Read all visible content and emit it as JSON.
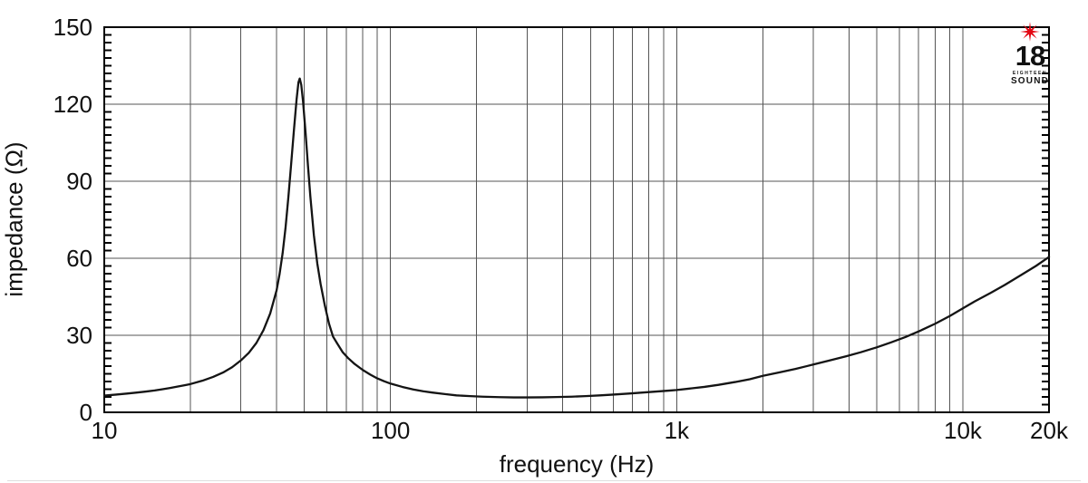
{
  "chart_data": {
    "type": "line",
    "title": "",
    "xlabel": "frequency (Hz)",
    "ylabel": "impedance (Ω)",
    "x_scale": "log",
    "xlim": [
      10,
      20000
    ],
    "ylim": [
      0,
      150
    ],
    "x_ticks": [
      {
        "value": 10,
        "label": "10"
      },
      {
        "value": 100,
        "label": "100"
      },
      {
        "value": 1000,
        "label": "1k"
      },
      {
        "value": 10000,
        "label": "10k"
      },
      {
        "value": 20000,
        "label": "20k"
      }
    ],
    "y_ticks": [
      {
        "value": 0,
        "label": "0"
      },
      {
        "value": 30,
        "label": "30"
      },
      {
        "value": 60,
        "label": "60"
      },
      {
        "value": 90,
        "label": "90"
      },
      {
        "value": 120,
        "label": "120"
      },
      {
        "value": 150,
        "label": "150"
      }
    ],
    "y_minor_step": 3,
    "grid": "log-decades-vertical, major-horizontal",
    "legend": "none",
    "line_color": "#141414",
    "grid_color": "#555555",
    "frame_color": "#000000",
    "resonance_peak": {
      "frequency_hz": 48,
      "impedance_ohm": 130
    },
    "series": [
      {
        "name": "impedance",
        "points": [
          [
            10,
            6.5
          ],
          [
            11,
            6.9
          ],
          [
            12,
            7.3
          ],
          [
            13,
            7.7
          ],
          [
            14,
            8.1
          ],
          [
            15,
            8.5
          ],
          [
            16,
            9.0
          ],
          [
            17,
            9.5
          ],
          [
            18,
            10.0
          ],
          [
            19,
            10.5
          ],
          [
            20,
            11.0
          ],
          [
            22,
            12.3
          ],
          [
            24,
            13.8
          ],
          [
            26,
            15.5
          ],
          [
            28,
            17.6
          ],
          [
            30,
            20.2
          ],
          [
            32,
            23.2
          ],
          [
            34,
            27.0
          ],
          [
            36,
            32.0
          ],
          [
            38,
            38.5
          ],
          [
            40,
            47.5
          ],
          [
            41,
            54
          ],
          [
            42,
            62
          ],
          [
            43,
            72
          ],
          [
            44,
            84
          ],
          [
            45,
            97
          ],
          [
            46,
            110
          ],
          [
            47,
            122
          ],
          [
            47.7,
            128.5
          ],
          [
            48.2,
            130
          ],
          [
            48.8,
            127.5
          ],
          [
            49.5,
            121
          ],
          [
            50.5,
            109
          ],
          [
            51.5,
            96
          ],
          [
            52.5,
            84
          ],
          [
            54,
            69
          ],
          [
            55.5,
            58
          ],
          [
            57,
            50
          ],
          [
            59,
            41.5
          ],
          [
            61,
            34.5
          ],
          [
            63,
            29.5
          ],
          [
            65,
            27
          ],
          [
            68,
            23.5
          ],
          [
            71,
            21.2
          ],
          [
            75,
            18.8
          ],
          [
            80,
            16.5
          ],
          [
            85,
            14.7
          ],
          [
            90,
            13.2
          ],
          [
            95,
            12.1
          ],
          [
            100,
            11.2
          ],
          [
            110,
            9.9
          ],
          [
            120,
            8.9
          ],
          [
            130,
            8.2
          ],
          [
            140,
            7.7
          ],
          [
            155,
            7.1
          ],
          [
            170,
            6.6
          ],
          [
            190,
            6.3
          ],
          [
            210,
            6.1
          ],
          [
            240,
            5.9
          ],
          [
            270,
            5.8
          ],
          [
            300,
            5.8
          ],
          [
            340,
            5.85
          ],
          [
            380,
            5.95
          ],
          [
            430,
            6.1
          ],
          [
            480,
            6.3
          ],
          [
            540,
            6.6
          ],
          [
            600,
            6.9
          ],
          [
            680,
            7.3
          ],
          [
            760,
            7.7
          ],
          [
            850,
            8.1
          ],
          [
            950,
            8.5
          ],
          [
            1000,
            8.7
          ],
          [
            1100,
            9.2
          ],
          [
            1250,
            9.9
          ],
          [
            1400,
            10.7
          ],
          [
            1600,
            11.8
          ],
          [
            1800,
            12.9
          ],
          [
            2000,
            14.2
          ],
          [
            2300,
            15.6
          ],
          [
            2600,
            16.9
          ],
          [
            3000,
            18.6
          ],
          [
            3400,
            20.1
          ],
          [
            3900,
            21.8
          ],
          [
            4400,
            23.4
          ],
          [
            5000,
            25.3
          ],
          [
            5600,
            27.2
          ],
          [
            6300,
            29.3
          ],
          [
            7100,
            31.8
          ],
          [
            8000,
            34.5
          ],
          [
            9000,
            37.5
          ],
          [
            10000,
            40.5
          ],
          [
            11000,
            43.2
          ],
          [
            12500,
            46.5
          ],
          [
            14000,
            49.6
          ],
          [
            16000,
            53.5
          ],
          [
            18000,
            57.0
          ],
          [
            20000,
            60.5
          ]
        ]
      }
    ]
  },
  "logo": {
    "number": "18",
    "line1": "EIGHTEEN",
    "line2": "SOUND",
    "star_color": "#e30613",
    "text_color": "#111111"
  }
}
